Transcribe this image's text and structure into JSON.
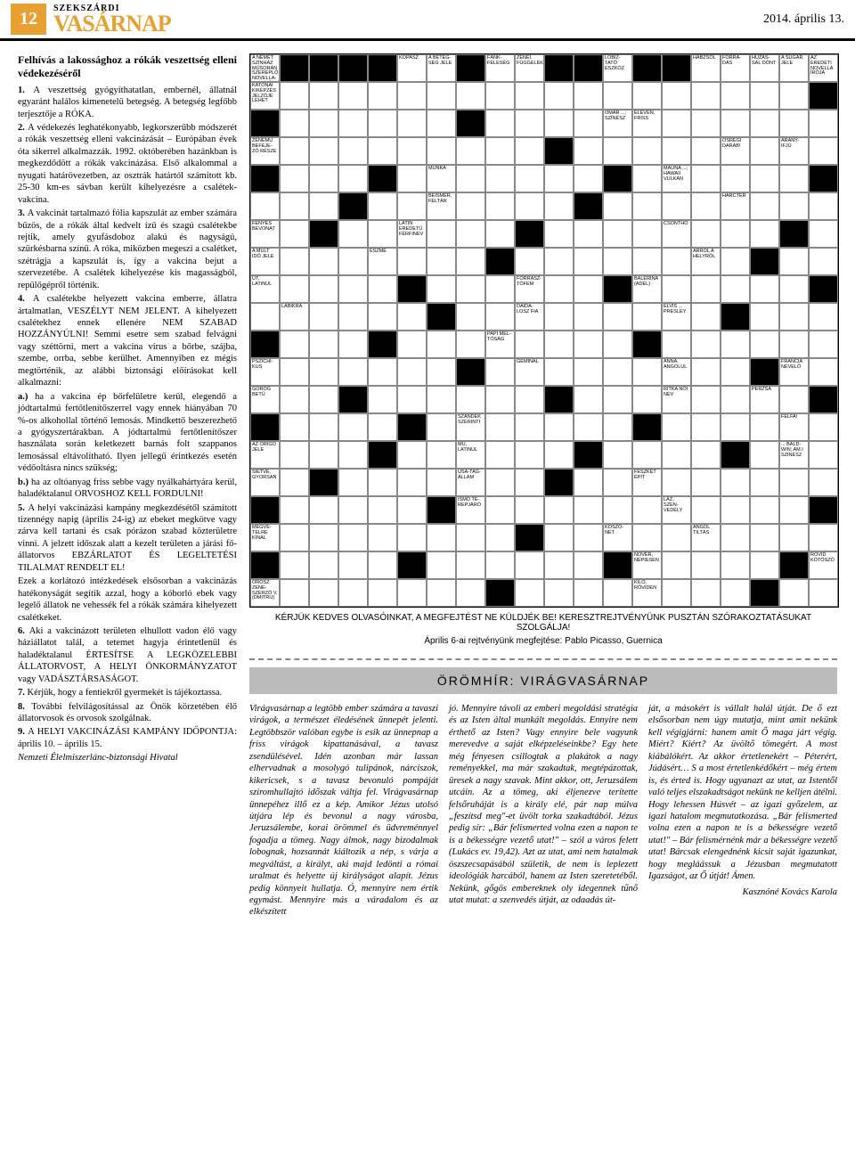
{
  "header": {
    "page_number": "12",
    "masthead_top": "SZEKSZÁRDI",
    "masthead_main": "VASÁRNAP",
    "date": "2014. április 13."
  },
  "notice": {
    "title": "Felhívás a lakossághoz a rókák veszettség elleni védekezéséről",
    "items": [
      {
        "n": "1.",
        "text": "A veszettség gyógyíthatatlan, embernél, állatnál egyaránt halálos kimenetelű betegség. A betegség legfőbb terjesztője a RÓKA."
      },
      {
        "n": "2.",
        "text": "A védekezés leghatékonyabb, legkorszerűbb módszerét a rókák veszettség elleni vakcinázását – Európában évek óta sikerrel alkalmazzák. 1992. októberében hazánkban is megkezdődött a rókák vakcinázása. Első alkalommal a nyugati határövezetben, az osztrák határtól számított kb. 25-30 km-es sávban került kihelyezésre a csalétek-vakcina."
      },
      {
        "n": "3.",
        "text": "A vakcinát tartalmazó fólia kapszulát az ember számára bűzös, de a rókák által kedvelt ízű és szagú csalétekbe rejtik, amely gyufásdoboz alakú és nagyságú, szürkésbarna színű. A róka, miközben megeszi a csalétket, szétrágja a kapszulát is, így a vakcina bejut a szervezetébe. A csalétek kihelyezése kis magasságból, repülőgépről történik."
      },
      {
        "n": "4.",
        "text": "A csalétekbe helyezett vakcina emberre, állatra ártalmatlan, VESZÉLYT NEM JELENT. A kihelyezett csalétekhez ennek ellenére NEM SZABAD HOZZÁNYÚLNI! Semmi esetre sem szabad felvágni vagy széttörni, mert a vakcina vírus a bőrbe, szájba, szembe, orrba, sebbe kerülhet. Amennyiben ez mégis megtörténik, az alábbi biztonsági előírásokat kell alkalmazni:"
      },
      {
        "n": "a.)",
        "text": "ha a vakcina ép bőrfelületre kerül, elegendő a jódtartalmú fertőtlenítőszerrel vagy ennek hiányában 70 %-os alkohollal történő lemosás. Mindkettő beszerezhető a gyógyszertárakban. A jódtartalmú fertőtlenítőszer használata során keletkezett barnás folt szappanos lemosással eltávolítható. Ilyen jellegű érintkezés esetén védőoltásra nincs szükség;"
      },
      {
        "n": "b.)",
        "text": "ha az oltóanyag friss sebbe vagy nyálkahártyára kerül, haladéktalanul ORVOSHOZ KELL FORDULNI!"
      },
      {
        "n": "5.",
        "text": "A helyi vakcinázási kampány megkezdésétől számított tizennégy napig (április 24-ig) az ebeket megkötve vagy zárva kell tartani és csak pórázon szabad közterületre vinni. A jelzett időszak alatt a kezelt területen a járási fő-állatorvos EBZÁRLATOT ÉS LEGELTETÉSI TILALMAT RENDELT EL!"
      },
      {
        "n": "",
        "text": "Ezek a korlátozó intézkedések elsősorban a vakcinázás hatékonyságát segítik azzal, hogy a kóborló ebek vagy legelő állatok ne vehessék fel a rókák számára kihelyezett csalétkeket."
      },
      {
        "n": "6.",
        "text": "Aki a vakcinázott területen elhullott vadon élő vagy háziállatot talál, a tetemet hagyja érintetlenül és haladéktalanul ÉRTESÍTSE A LEGKÖZELEBBI ÁLLATORVOST, A HELYI ÖNKORMÁNYZATOT vagy VADÁSZTÁRSASÁGOT."
      },
      {
        "n": "7.",
        "text": "Kérjük, hogy a fentiekről gyermekét is tájékoztassa."
      },
      {
        "n": "8.",
        "text": "További felvilágosítással az Önök körzetében élő állatorvosok és orvosok szolgálnak."
      },
      {
        "n": "9.",
        "text": "A HELYI VAKCINÁZÁSI KAMPÁNY IDŐPONTJA: április 10. – április 15."
      }
    ],
    "footer": "Nemzeti Élelmiszerlánc-biztonsági Hivatal"
  },
  "crossword": {
    "cols": 20,
    "rows": 20,
    "clue_cells": [
      {
        "r": 0,
        "c": 0,
        "t": "A NÉMET SZÍNHÁZ MŰSORÁN SZEREPLŐ NOVELLA-ADAPTÁCIÓ"
      },
      {
        "r": 0,
        "c": 5,
        "t": "KOPASZ"
      },
      {
        "r": 0,
        "c": 6,
        "t": "A BETEG-SÉG JELE"
      },
      {
        "r": 0,
        "c": 8,
        "t": "FÁNK-FÉLESÉG"
      },
      {
        "r": 0,
        "c": 9,
        "t": "ZENEI FÜGGELÉK"
      },
      {
        "r": 0,
        "c": 12,
        "t": "LÓBIZ-TATÓ ESZKÖZ"
      },
      {
        "r": 0,
        "c": 15,
        "t": "HABZSOL"
      },
      {
        "r": 0,
        "c": 16,
        "t": "FORRA-DÁS"
      },
      {
        "r": 0,
        "c": 17,
        "t": "HÚZÁS-SAL DÖNT"
      },
      {
        "r": 0,
        "c": 18,
        "t": "A SUGÁR JELE"
      },
      {
        "r": 0,
        "c": 19,
        "t": "AZ EREDETI NOVELLA ÍRÓJA"
      },
      {
        "r": 1,
        "c": 0,
        "t": "KATONAI KIKÉPZÉS JELZŐJE LEHET"
      },
      {
        "r": 2,
        "c": 12,
        "t": "OMAR ...; SZÍNÉSZ"
      },
      {
        "r": 2,
        "c": 13,
        "t": "ELEVEN, FRISS"
      },
      {
        "r": 3,
        "c": 0,
        "t": "ZENEMŰ BEFEJE-ZŐ RÉSZE"
      },
      {
        "r": 3,
        "c": 16,
        "t": "ŐSRÉGI DARAB!"
      },
      {
        "r": 3,
        "c": 18,
        "t": "ARANY-IFJÚ"
      },
      {
        "r": 4,
        "c": 6,
        "t": "MUNKA"
      },
      {
        "r": 4,
        "c": 14,
        "t": "MAUNA ...; HAWAII VULKÁN"
      },
      {
        "r": 5,
        "c": 6,
        "t": "BEISMER, FELTÁR"
      },
      {
        "r": 5,
        "c": 16,
        "t": "HARCTÉR"
      },
      {
        "r": 6,
        "c": 0,
        "t": "FÉNYES BEVONAT"
      },
      {
        "r": 6,
        "c": 5,
        "t": "LATIN EREDETŰ FÉRFINÉV"
      },
      {
        "r": 6,
        "c": 14,
        "t": "CSONTHÓ"
      },
      {
        "r": 7,
        "c": 0,
        "t": "A MÚLT IDŐ JELE"
      },
      {
        "r": 7,
        "c": 4,
        "t": "ESZME"
      },
      {
        "r": 7,
        "c": 15,
        "t": "ARRÓL A HELYRŐL"
      },
      {
        "r": 8,
        "c": 0,
        "t": "ÜT, LATINUL"
      },
      {
        "r": 8,
        "c": 9,
        "t": "FORRASZ-TÓFÉM"
      },
      {
        "r": 8,
        "c": 13,
        "t": "BALERINA (ADÉL)"
      },
      {
        "r": 9,
        "c": 1,
        "t": "LÁBIKRA"
      },
      {
        "r": 9,
        "c": 9,
        "t": "DAIDA-LOSZ FIA"
      },
      {
        "r": 9,
        "c": 14,
        "t": "ELVIS ... PRESLEY"
      },
      {
        "r": 10,
        "c": 8,
        "t": "PAPI MÉL-TÓSÁG"
      },
      {
        "r": 11,
        "c": 0,
        "t": "PSZICHI-KUS"
      },
      {
        "r": 11,
        "c": 9,
        "t": "GEMINÁL"
      },
      {
        "r": 11,
        "c": 14,
        "t": "ANNA, ANGOLUL"
      },
      {
        "r": 11,
        "c": 18,
        "t": "FRANCIA NÉVELŐ"
      },
      {
        "r": 12,
        "c": 0,
        "t": "GÖRÖG BETŰ"
      },
      {
        "r": 12,
        "c": 14,
        "t": "RITKA NŐI NÉV"
      },
      {
        "r": 12,
        "c": 17,
        "t": "PERZSA"
      },
      {
        "r": 13,
        "c": 7,
        "t": "SZÁNDÉK SZERINTI"
      },
      {
        "r": 13,
        "c": 18,
        "t": "FÉLFA!"
      },
      {
        "r": 14,
        "c": 0,
        "t": "AZ ORIGÓ JELE"
      },
      {
        "r": 14,
        "c": 7,
        "t": "MŰ, LATINUL"
      },
      {
        "r": 14,
        "c": 18,
        "t": "... BALD-WIN; AM.I SZÍNÉSZ"
      },
      {
        "r": 15,
        "c": 0,
        "t": "SIETVE, GYORSAN"
      },
      {
        "r": 15,
        "c": 7,
        "t": "USA-TAG-ÁLLAM"
      },
      {
        "r": 15,
        "c": 13,
        "t": "FÉSZKET ÉPÍT"
      },
      {
        "r": 16,
        "c": 7,
        "t": "ISMŐ TE-REPJÁRÓ"
      },
      {
        "r": 16,
        "c": 14,
        "t": "LÁZ, SZEN-VEDÉLY"
      },
      {
        "r": 17,
        "c": 0,
        "t": "MEGVÉ-TELRE KÍNÁL"
      },
      {
        "r": 17,
        "c": 12,
        "t": "KÖSZÖ-NET"
      },
      {
        "r": 17,
        "c": 15,
        "t": "ANGOL TILTÁS"
      },
      {
        "r": 18,
        "c": 13,
        "t": "NŐVÉR, NÉPIESEN"
      },
      {
        "r": 18,
        "c": 19,
        "t": "RÖVID KÖTŐSZÓ"
      },
      {
        "r": 19,
        "c": 0,
        "t": "OROSZ ZENE-SZERZŐ V. (DMITRIJ)"
      },
      {
        "r": 19,
        "c": 13,
        "t": "KILO, RÖVIDEN"
      }
    ],
    "black_cells": [
      [
        0,
        1
      ],
      [
        0,
        2
      ],
      [
        0,
        3
      ],
      [
        0,
        4
      ],
      [
        0,
        7
      ],
      [
        0,
        10
      ],
      [
        0,
        11
      ],
      [
        0,
        13
      ],
      [
        0,
        14
      ],
      [
        1,
        19
      ],
      [
        2,
        0
      ],
      [
        2,
        7
      ],
      [
        3,
        10
      ],
      [
        4,
        0
      ],
      [
        4,
        4
      ],
      [
        4,
        12
      ],
      [
        4,
        19
      ],
      [
        5,
        3
      ],
      [
        5,
        11
      ],
      [
        6,
        2
      ],
      [
        6,
        9
      ],
      [
        6,
        18
      ],
      [
        7,
        8
      ],
      [
        7,
        17
      ],
      [
        8,
        5
      ],
      [
        8,
        12
      ],
      [
        8,
        19
      ],
      [
        9,
        6
      ],
      [
        9,
        16
      ],
      [
        10,
        0
      ],
      [
        10,
        4
      ],
      [
        10,
        13
      ],
      [
        11,
        7
      ],
      [
        11,
        17
      ],
      [
        12,
        3
      ],
      [
        12,
        10
      ],
      [
        12,
        19
      ],
      [
        13,
        0
      ],
      [
        13,
        5
      ],
      [
        13,
        13
      ],
      [
        14,
        4
      ],
      [
        14,
        11
      ],
      [
        14,
        16
      ],
      [
        15,
        2
      ],
      [
        15,
        10
      ],
      [
        16,
        0
      ],
      [
        16,
        6
      ],
      [
        16,
        19
      ],
      [
        17,
        9
      ],
      [
        18,
        0
      ],
      [
        18,
        5
      ],
      [
        18,
        12
      ],
      [
        18,
        18
      ],
      [
        19,
        8
      ],
      [
        19,
        17
      ]
    ],
    "caption": "KÉRJÜK KEDVES OLVASÓINKAT, A MEGFEJTÉST NE KÜLDJÉK BE! KERESZTREJTVÉNYÜNK PUSZTÁN SZÓRAKOZTATÁSUKAT SZOLGÁLJA!",
    "answer_line": "Április 6-ai rejtvényünk megfejtése: Pablo Picasso, Guernica"
  },
  "oromhir": {
    "bar": "ÖRÖMHÍR: VIRÁGVASÁRNAP",
    "col1": "Virágvasárnap a legtöbb ember számára a tavaszi virágok, a természet éledésének ünnepét jelenti. Legtöbbször valóban egybe is esik az ünnepnap a friss virágok kipattanásával, a tavasz zsendülésével. Idén azonban már lassan elhervadnak a mosolygó tulipánok, nárciszok, kikericsek, s a tavasz bevonuló pompáját sziromhullajtó időszak váltja fel.\nVirágvasárnap ünnepéhez illő ez a kép. Amikor Jézus utolsó útjára lép és bevonul a nagy városba, Jeruzsálembe, korai örömmel és üdvreménnyel fogadja a tömeg. Nagy álmok, nagy bizodalmak lobognak, hozsannát kiáltozik a nép, s várja a megváltást, a királyt, aki majd ledönti a római uralmat és helyette új királyságot alapít.\nJézus pedig könnyeit hullatja. Ó, mennyire nem értik egymást. Mennyire más a váradalom és az elkészített",
    "col2": "jó. Mennyire távoli az emberi megoldási stratégia és az Isten által munkált megoldás. Ennyire nem érthető az Isten? Vagy ennyire bele vagyunk merevedve a saját elképzeléseinkbe?\nEgy hete még fényesen csillogtak a plakátok a nagy reményekkel, ma már szakadtak, megtépázottak, üresek a nagy szavak. Mint akkor, ott, Jeruzsálem utcáin. Az a tömeg, aki éljenezve terítette felsőruháját is a király elé, pár nap múlva „feszítsd meg\"-et üvölt torka szakadtából. Jézus pedig sír: „Bár felismerted volna ezen a napon te is a békességre vezető utat!\" – szól a város felett (Lukács ev. 19,42).\nAzt az utat, ami nem hatalmak öszszecsapásából születik, de nem is leplezett ideológiák harcából, hanem az Isten szeretetéből. Nekünk, gőgös embereknek oly idegennek tűnő utat mutat: a szenvedés útját, az odaadás út-",
    "col3": "ját, a másokért is vállalt halál útját. De ő ezt elsősorban nem úgy mutatja, mint amit nekünk kell végigjárni: hanem amit Ő maga járt végig. Miért? Kiért? Az üvöltő tömegért. A most kiábálókért. Az akkor értetlenekért – Péterért, Júdásért… S a most értetlenkédőkért – még értem is, és érted is. Hogy ugyanazt az utat, az Istentől való teljes elszakadtságot nekünk ne kelljen átélni. Hogy lehessen Húsvét – az igazi győzelem, az igazi hatalom megmutatkozása. „Bár felismerted volna ezen a napon te is a békességre vezető utat!\" – Bár felismérnénk már a békességre vezető utat! Bárcsak elengednénk kicsit saját igazunkat, hogy megláássuk a Jézusban megmutatott Igazságot, az Ő útját! Ámen.",
    "signature": "Kasznóné Kovács Karola"
  },
  "colors": {
    "accent": "#e8a030",
    "grey_bar": "#bbbbbb",
    "border": "#000000"
  }
}
